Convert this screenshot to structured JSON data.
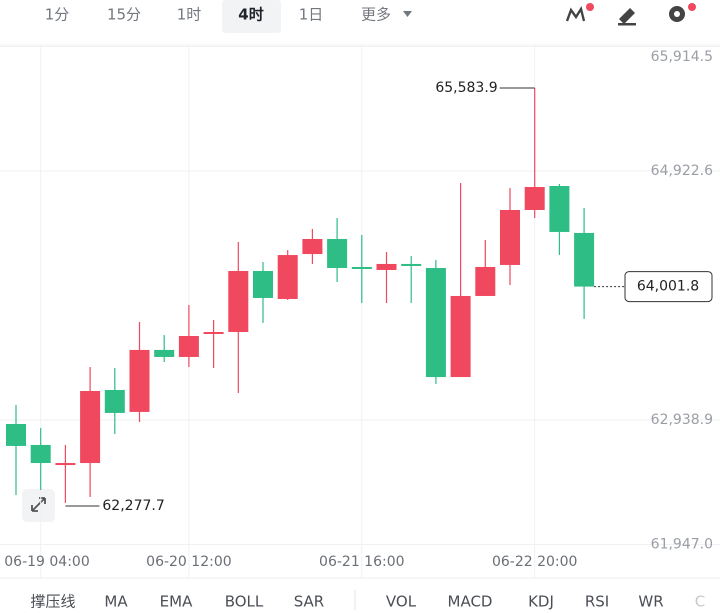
{
  "toolbar": {
    "tabs": [
      "1分",
      "15分",
      "1时",
      "4时",
      "1日",
      "更多"
    ],
    "selected_tab": 3
  },
  "chart_data": {
    "type": "candlestick",
    "categories": [
      null,
      "06-19 04:00",
      null,
      null,
      null,
      null,
      null,
      "06-20 12:00",
      null,
      null,
      null,
      null,
      null,
      null,
      "06-21 16:00",
      null,
      null,
      null,
      null,
      null,
      null,
      "06-22 20:00",
      null,
      null
    ],
    "open": [
      62907,
      62740,
      62580,
      62596,
      63178,
      63003,
      63497,
      63441,
      63624,
      63640,
      64126,
      63903,
      64261,
      64381,
      64158,
      64134,
      64182,
      64150,
      63281,
      63927,
      64174,
      64612,
      64803,
      64429
    ],
    "high": [
      63058,
      62875,
      62740,
      63361,
      63353,
      63720,
      63616,
      63855,
      63736,
      64357,
      64198,
      64293,
      64461,
      64548,
      64413,
      64277,
      64245,
      64214,
      64827,
      64373,
      64787,
      65583.9,
      64819,
      64628
    ],
    "low": [
      62341,
      62381,
      62277.7,
      62325,
      62827,
      62923,
      63401,
      63361,
      63353,
      63154,
      63712,
      63895,
      64182,
      64038,
      63871,
      63871,
      63871,
      63226,
      63281,
      63927,
      64014,
      64548,
      64253,
      63744
    ],
    "close": [
      62732,
      62596,
      62596,
      63170,
      62995,
      63497,
      63441,
      63608,
      63640,
      64126,
      63911,
      64253,
      64381,
      64150,
      64142,
      64182,
      64166,
      63281,
      63927,
      64158,
      64612,
      64795,
      64437,
      64001.8
    ],
    "up_color": "#f0485f",
    "down_color": "#2ebd85",
    "ylim": [
      61919,
      65926.5
    ],
    "yticks": [
      {
        "value": 65914.5,
        "label": "65,914.5"
      },
      {
        "value": 64922.6,
        "label": "64,922.6"
      },
      {
        "value": 62938.9,
        "label": "62,938.9"
      },
      {
        "value": 61947.0,
        "label": "61,947.0"
      }
    ],
    "grid": true,
    "annotations": [
      {
        "kind": "high",
        "candle": 21,
        "value": 65583.9,
        "label": "65,583.9"
      },
      {
        "kind": "low",
        "candle": 2,
        "value": 62277.7,
        "label": "62,277.7"
      },
      {
        "kind": "last",
        "candle": 23,
        "value": 64001.8,
        "label": "64,001.8"
      }
    ]
  },
  "indicators": [
    "撑压线",
    "MA",
    "EMA",
    "BOLL",
    "SAR",
    "VOL",
    "MACD",
    "KDJ",
    "RSI",
    "WR",
    "C"
  ]
}
